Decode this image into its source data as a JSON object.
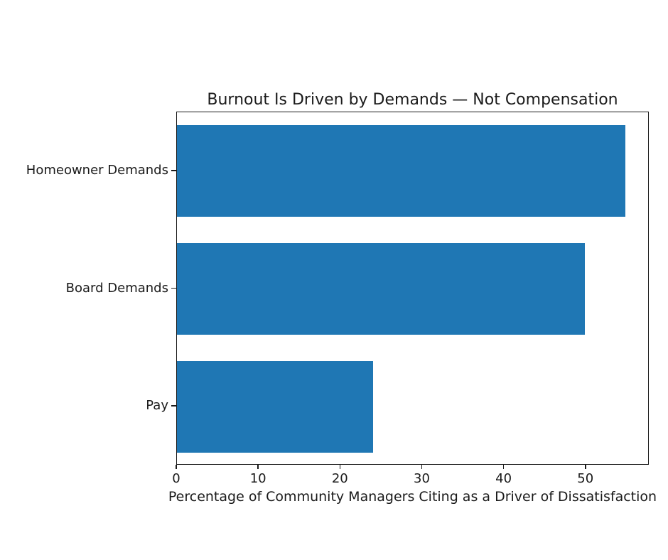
{
  "chart_data": {
    "type": "bar",
    "orientation": "horizontal",
    "title": "Burnout Is Driven by Demands — Not Compensation",
    "xlabel": "Percentage of Community Managers Citing as a Driver of Dissatisfaction",
    "ylabel": "",
    "categories": [
      "Homeowner Demands",
      "Board Demands",
      "Pay"
    ],
    "values": [
      55,
      50,
      24
    ],
    "xlim": [
      0,
      57.75
    ],
    "xticks": [
      0,
      10,
      20,
      30,
      40,
      50
    ],
    "bar_color": "#1f77b4",
    "bar_height_fraction": 0.78,
    "grid": false,
    "legend": null
  }
}
